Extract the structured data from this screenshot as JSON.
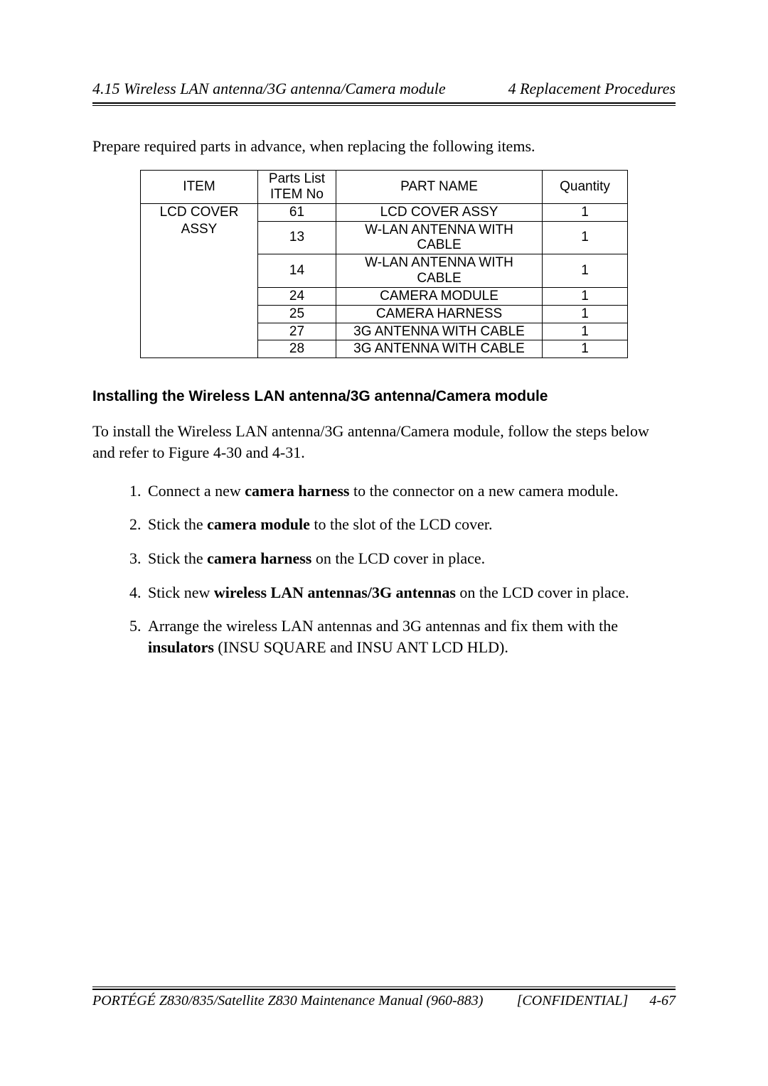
{
  "header": {
    "left": "4.15  Wireless LAN antenna/3G antenna/Camera module",
    "right": "4 Replacement Procedures"
  },
  "intro": "Prepare required parts in advance, when replacing the following items.",
  "table": {
    "columns": {
      "item": "ITEM",
      "no_line1": "Parts List",
      "no_line2": "ITEM No",
      "name": "PART NAME",
      "qty": "Quantity"
    },
    "item_group_line1": "LCD COVER",
    "item_group_line2": "ASSY",
    "rows": [
      {
        "no": "61",
        "name": "LCD COVER ASSY",
        "qty": "1"
      },
      {
        "no": "13",
        "name_line1": "W-LAN ANTENNA WITH",
        "name_line2": "CABLE",
        "qty": "1"
      },
      {
        "no": "14",
        "name_line1": "W-LAN ANTENNA WITH",
        "name_line2": "CABLE",
        "qty": "1"
      },
      {
        "no": "24",
        "name": "CAMERA MODULE",
        "qty": "1"
      },
      {
        "no": "25",
        "name": "CAMERA HARNESS",
        "qty": "1"
      },
      {
        "no": "27",
        "name": "3G ANTENNA WITH CABLE",
        "qty": "1"
      },
      {
        "no": "28",
        "name": "3G ANTENNA WITH CABLE",
        "qty": "1"
      }
    ]
  },
  "section_heading": "Installing the Wireless LAN antenna/3G antenna/Camera module",
  "section_intro": "To install the Wireless LAN antenna/3G antenna/Camera module, follow the steps below and refer to Figure 4-30 and 4-31.",
  "steps": {
    "s1a": "Connect a new ",
    "s1b": "camera harness",
    "s1c": " to the connector on a new camera module.",
    "s2a": "Stick the ",
    "s2b": "camera module",
    "s2c": " to the slot of the LCD cover.",
    "s3a": "Stick the ",
    "s3b": "camera harness",
    "s3c": " on the LCD cover in place.",
    "s4a": "Stick new ",
    "s4b": "wireless LAN antennas/3G antennas",
    "s4c": " on the LCD cover in place.",
    "s5a": "Arrange the wireless LAN antennas and 3G antennas and fix them with the ",
    "s5b": "insulators",
    "s5c": " (INSU SQUARE and INSU ANT LCD HLD)."
  },
  "footer": {
    "left": "PORTÉGÉ Z830/835/Satellite Z830 Maintenance Manual (960-883)",
    "mid": "[CONFIDENTIAL]",
    "right": "4-67"
  }
}
